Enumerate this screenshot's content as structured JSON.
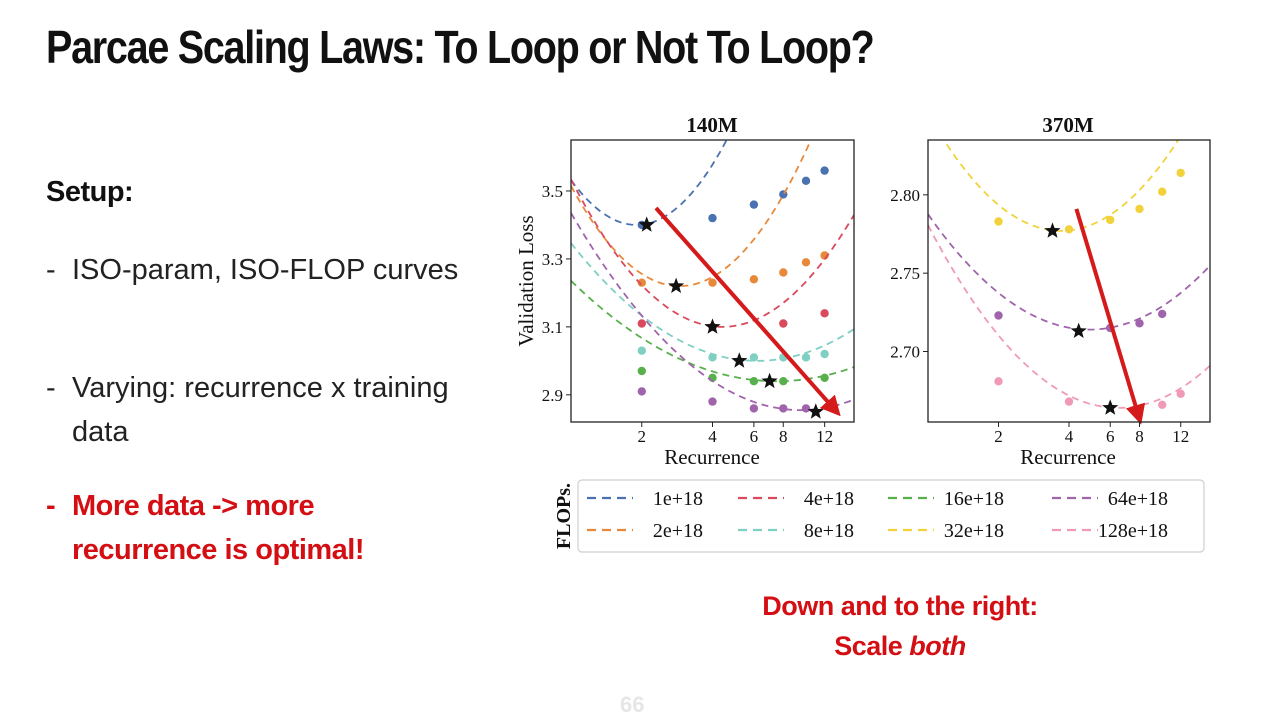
{
  "slide": {
    "title": "Parcae Scaling Laws: To Loop or Not To Loop?",
    "setup_label": "Setup:",
    "bullets": [
      {
        "dash": "-",
        "text": "ISO-param, ISO-FLOP curves",
        "highlight": false
      },
      {
        "dash": "-",
        "text": "Varying: recurrence x training data",
        "highlight": false
      },
      {
        "dash": "-",
        "text": "More data -> more recurrence is optimal!",
        "highlight": true
      }
    ],
    "caption_line1": "Down and to the right:",
    "caption_line2_prefix": "Scale ",
    "caption_line2_em": "both",
    "page_number": "66",
    "accent_color": "#d40f14"
  },
  "chart_data": [
    {
      "type": "line",
      "title": "140M",
      "xlabel": "Recurrence",
      "ylabel": "Validation Loss",
      "x_scale": "log2",
      "x_ticks": [
        2,
        4,
        6,
        8,
        12
      ],
      "x_tick_labels": [
        "2",
        "4",
        "6",
        "8",
        "12"
      ],
      "xlim": [
        1,
        16
      ],
      "y_ticks": [
        2.9,
        3.1,
        3.3,
        3.5
      ],
      "y_tick_labels": [
        "2.9",
        "3.1",
        "3.3",
        "3.5"
      ],
      "ylim": [
        2.82,
        3.65
      ],
      "series": [
        {
          "name": "1e+18",
          "color": "#4a72b0",
          "x": [
            2,
            4,
            6,
            8,
            10,
            12
          ],
          "y": [
            3.4,
            3.42,
            3.46,
            3.49,
            3.53,
            3.56
          ],
          "optimum": [
            2.1,
            3.4
          ],
          "curve": {
            "vertex_x": 1.9,
            "vertex_y": 3.4,
            "a": 0.154
          }
        },
        {
          "name": "2e+18",
          "color": "#e8893a",
          "x": [
            2,
            4,
            6,
            8,
            10,
            12
          ],
          "y": [
            3.23,
            3.23,
            3.24,
            3.26,
            3.29,
            3.31
          ],
          "optimum": [
            2.8,
            3.22
          ],
          "curve": {
            "vertex_x": 2.9,
            "vertex_y": 3.22,
            "a": 0.125
          }
        },
        {
          "name": "4e+18",
          "color": "#d94a5c",
          "x": [
            2,
            4,
            8,
            12
          ],
          "y": [
            3.11,
            3.1,
            3.11,
            3.14
          ],
          "optimum": [
            4.0,
            3.1
          ],
          "curve": {
            "vertex_x": 4.4,
            "vertex_y": 3.1,
            "a": 0.095
          }
        },
        {
          "name": "8e+18",
          "color": "#7fcfc3",
          "x": [
            2,
            4,
            6,
            8,
            10,
            12
          ],
          "y": [
            3.03,
            3.01,
            3.01,
            3.01,
            3.01,
            3.02
          ],
          "optimum": [
            5.2,
            3.0
          ],
          "curve": {
            "vertex_x": 6.2,
            "vertex_y": 3.0,
            "a": 0.05
          }
        },
        {
          "name": "16e+18",
          "color": "#58b04c",
          "x": [
            2,
            4,
            6,
            8,
            12
          ],
          "y": [
            2.97,
            2.95,
            2.94,
            2.94,
            2.95
          ],
          "optimum": [
            7.0,
            2.94
          ],
          "curve": {
            "vertex_x": 7.5,
            "vertex_y": 2.94,
            "a": 0.035
          }
        },
        {
          "name": "64e+18",
          "color": "#a064ac",
          "x": [
            2,
            4,
            6,
            8,
            10
          ],
          "y": [
            2.91,
            2.88,
            2.86,
            2.86,
            2.86
          ],
          "optimum": [
            11.0,
            2.85
          ],
          "curve": {
            "vertex_x": 9.5,
            "vertex_y": 2.855,
            "a": 0.055
          }
        }
      ],
      "arrow": {
        "from": [
          2.3,
          3.45
        ],
        "to": [
          13.5,
          2.85
        ],
        "color": "#d41a1a"
      }
    },
    {
      "type": "line",
      "title": "370M",
      "xlabel": "Recurrence",
      "ylabel": "",
      "x_scale": "log2",
      "x_ticks": [
        2,
        4,
        6,
        8,
        12
      ],
      "x_tick_labels": [
        "2",
        "4",
        "6",
        "8",
        "12"
      ],
      "xlim": [
        1,
        16
      ],
      "y_ticks": [
        2.7,
        2.75,
        2.8
      ],
      "y_tick_labels": [
        "2.70",
        "2.75",
        "2.80"
      ],
      "ylim": [
        2.655,
        2.835
      ],
      "series": [
        {
          "name": "32e+18",
          "color": "#f2d23a",
          "x": [
            2,
            4,
            6,
            8,
            10,
            12
          ],
          "y": [
            2.783,
            2.778,
            2.784,
            2.791,
            2.802,
            2.814
          ],
          "optimum": [
            3.4,
            2.777
          ],
          "curve": {
            "vertex_x": 3.7,
            "vertex_y": 2.777,
            "a": 0.021
          }
        },
        {
          "name": "64e+18",
          "color": "#a064ac",
          "x": [
            2,
            6,
            8,
            10
          ],
          "y": [
            2.723,
            2.715,
            2.718,
            2.724
          ],
          "optimum": [
            4.4,
            2.713
          ],
          "curve": {
            "vertex_x": 4.9,
            "vertex_y": 2.714,
            "a": 0.014
          }
        },
        {
          "name": "128e+18",
          "color": "#f09ab8",
          "x": [
            2,
            4,
            10,
            12
          ],
          "y": [
            2.681,
            2.668,
            2.666,
            2.673
          ],
          "optimum": [
            6.0,
            2.664
          ],
          "curve": {
            "vertex_x": 6.5,
            "vertex_y": 2.664,
            "a": 0.016
          }
        }
      ],
      "arrow": {
        "from": [
          4.3,
          2.791
        ],
        "to": [
          8.0,
          2.657
        ],
        "color": "#d41a1a"
      }
    }
  ],
  "legend": {
    "title": "FLOPs.",
    "entries": [
      {
        "label": "1e+18",
        "color": "#4a72b0"
      },
      {
        "label": "4e+18",
        "color": "#d94a5c"
      },
      {
        "label": "16e+18",
        "color": "#58b04c"
      },
      {
        "label": "64e+18",
        "color": "#a064ac"
      },
      {
        "label": "2e+18",
        "color": "#e8893a"
      },
      {
        "label": "8e+18",
        "color": "#7fcfc3"
      },
      {
        "label": "32e+18",
        "color": "#f2d23a"
      },
      {
        "label": "128e+18",
        "color": "#f09ab8"
      }
    ]
  }
}
